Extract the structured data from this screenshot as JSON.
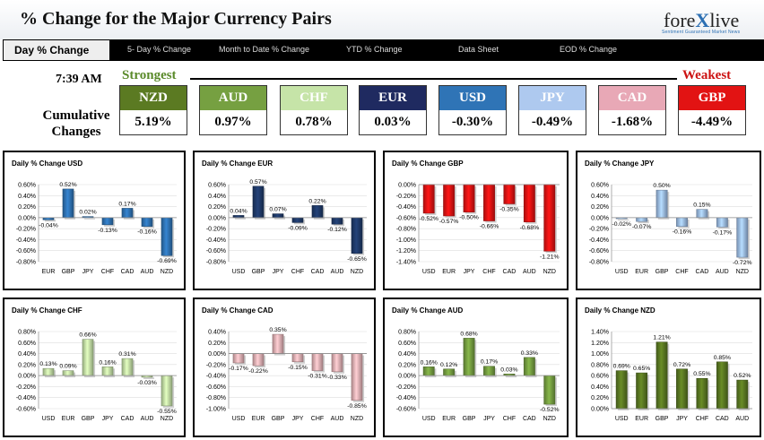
{
  "header": {
    "title": "% Change for the Major Currency Pairs",
    "logo_left": "fore",
    "logo_x": "X",
    "logo_right": "live",
    "logo_tagline": "Sentiment Guaranteed Market News"
  },
  "tabs": [
    {
      "label": "Day % Change",
      "active": true
    },
    {
      "label": "5- Day % Change"
    },
    {
      "label": "Month to Date % Change"
    },
    {
      "label": "YTD % Change"
    },
    {
      "label": "Data Sheet"
    },
    {
      "label": "EOD % Change"
    }
  ],
  "summary": {
    "time": "7:39 AM",
    "strongest_label": "Strongest",
    "weakest_label": "Weakest",
    "cumulative_label": "Cumulative Changes",
    "currencies": [
      {
        "code": "NZD",
        "value": "5.19%",
        "color": "#5b7a22"
      },
      {
        "code": "AUD",
        "value": "0.97%",
        "color": "#76a041"
      },
      {
        "code": "CHF",
        "value": "0.78%",
        "color": "#c6e4a8"
      },
      {
        "code": "EUR",
        "value": "0.03%",
        "color": "#1f2a60"
      },
      {
        "code": "USD",
        "value": "-0.30%",
        "color": "#2f74b6"
      },
      {
        "code": "JPY",
        "value": "-0.49%",
        "color": "#aec9ef"
      },
      {
        "code": "CAD",
        "value": "-1.68%",
        "color": "#e8a8b6"
      },
      {
        "code": "GBP",
        "value": "-4.49%",
        "color": "#e21313"
      }
    ]
  },
  "chart_data": [
    {
      "type": "bar",
      "title": "Daily % Change USD",
      "categories": [
        "EUR",
        "GBP",
        "JPY",
        "CHF",
        "CAD",
        "AUD",
        "NZD"
      ],
      "values": [
        -0.04,
        0.52,
        0.02,
        -0.13,
        0.17,
        -0.16,
        -0.69
      ],
      "labels": [
        "-0.04%",
        "0.52%",
        "0.02%",
        "-0.13%",
        "0.17%",
        "-0.16%",
        "-0.69%"
      ],
      "ylim": [
        -0.8,
        0.6
      ],
      "yticks": [
        "0.60%",
        "0.40%",
        "0.20%",
        "0.00%",
        "-0.20%",
        "-0.40%",
        "-0.60%",
        "-0.80%"
      ],
      "color": "#2f74b6"
    },
    {
      "type": "bar",
      "title": "Daily % Change EUR",
      "categories": [
        "USD",
        "GBP",
        "JPY",
        "CHF",
        "CAD",
        "AUD",
        "NZD"
      ],
      "values": [
        0.04,
        0.57,
        0.07,
        -0.09,
        0.22,
        -0.12,
        -0.65
      ],
      "labels": [
        "0.04%",
        "0.57%",
        "0.07%",
        "-0.09%",
        "0.22%",
        "-0.12%",
        "-0.65%"
      ],
      "ylim": [
        -0.8,
        0.6
      ],
      "yticks": [
        "0.60%",
        "0.40%",
        "0.20%",
        "0.00%",
        "-0.20%",
        "-0.40%",
        "-0.60%",
        "-0.80%"
      ],
      "color": "#1f3a6a"
    },
    {
      "type": "bar",
      "title": "Daily % Change GBP",
      "categories": [
        "USD",
        "EUR",
        "JPY",
        "CHF",
        "CAD",
        "AUD",
        "NZD"
      ],
      "values": [
        -0.52,
        -0.57,
        -0.5,
        -0.66,
        -0.35,
        -0.68,
        -1.21
      ],
      "labels": [
        "-0.52%",
        "-0.57%",
        "-0.50%",
        "-0.66%",
        "-0.35%",
        "-0.68%",
        "-1.21%"
      ],
      "ylim": [
        -1.4,
        0.0
      ],
      "yticks": [
        "0.00%",
        "-0.20%",
        "-0.40%",
        "-0.60%",
        "-0.80%",
        "-1.00%",
        "-1.20%",
        "-1.40%"
      ],
      "color": "#e21313"
    },
    {
      "type": "bar",
      "title": "Daily % Change JPY",
      "categories": [
        "USD",
        "EUR",
        "GBP",
        "CHF",
        "CAD",
        "AUD",
        "NZD"
      ],
      "values": [
        -0.02,
        -0.07,
        0.5,
        -0.16,
        0.15,
        -0.17,
        -0.72
      ],
      "labels": [
        "-0.02%",
        "-0.07%",
        "0.50%",
        "-0.16%",
        "0.15%",
        "-0.17%",
        "-0.72%"
      ],
      "ylim": [
        -0.8,
        0.6
      ],
      "yticks": [
        "0.60%",
        "0.40%",
        "0.20%",
        "0.00%",
        "-0.20%",
        "-0.40%",
        "-0.60%",
        "-0.80%"
      ],
      "color": "#9fc0ec"
    },
    {
      "type": "bar",
      "title": "Daily % Change CHF",
      "categories": [
        "USD",
        "EUR",
        "GBP",
        "JPY",
        "CAD",
        "AUD",
        "NZD"
      ],
      "values": [
        0.13,
        0.09,
        0.66,
        0.16,
        0.31,
        -0.03,
        -0.55
      ],
      "labels": [
        "0.13%",
        "0.09%",
        "0.66%",
        "0.16%",
        "0.31%",
        "-0.03%",
        "-0.55%"
      ],
      "ylim": [
        -0.6,
        0.8
      ],
      "yticks": [
        "0.80%",
        "0.60%",
        "0.40%",
        "0.20%",
        "0.00%",
        "-0.20%",
        "-0.40%",
        "-0.60%"
      ],
      "color": "#c6e4a8"
    },
    {
      "type": "bar",
      "title": "Daily % Change CAD",
      "categories": [
        "USD",
        "EUR",
        "GBP",
        "JPY",
        "CHF",
        "AUD",
        "NZD"
      ],
      "values": [
        -0.17,
        -0.22,
        0.35,
        -0.15,
        -0.31,
        -0.33,
        -0.85
      ],
      "labels": [
        "-0.17%",
        "-0.22%",
        "0.35%",
        "-0.15%",
        "-0.31%",
        "-0.33%",
        "-0.85%"
      ],
      "ylim": [
        -1.0,
        0.4
      ],
      "yticks": [
        "0.40%",
        "0.20%",
        "0.00%",
        "-0.20%",
        "-0.40%",
        "-0.60%",
        "-0.80%",
        "-1.00%"
      ],
      "color": "#e8b4b8"
    },
    {
      "type": "bar",
      "title": "Daily % Change AUD",
      "categories": [
        "USD",
        "EUR",
        "GBP",
        "JPY",
        "CHF",
        "CAD",
        "NZD"
      ],
      "values": [
        0.16,
        0.12,
        0.68,
        0.17,
        0.03,
        0.33,
        -0.52
      ],
      "labels": [
        "0.16%",
        "0.12%",
        "0.68%",
        "0.17%",
        "0.03%",
        "0.33%",
        "-0.52%"
      ],
      "ylim": [
        -0.6,
        0.8
      ],
      "yticks": [
        "0.80%",
        "0.60%",
        "0.40%",
        "0.20%",
        "0.00%",
        "-0.20%",
        "-0.40%",
        "-0.60%"
      ],
      "color": "#76a041"
    },
    {
      "type": "bar",
      "title": "Daily % Change NZD",
      "categories": [
        "USD",
        "EUR",
        "GBP",
        "JPY",
        "CHF",
        "CAD",
        "AUD"
      ],
      "values": [
        0.69,
        0.65,
        1.21,
        0.72,
        0.55,
        0.85,
        0.52
      ],
      "labels": [
        "0.69%",
        "0.65%",
        "1.21%",
        "0.72%",
        "0.55%",
        "0.85%",
        "0.52%"
      ],
      "ylim": [
        0.0,
        1.4
      ],
      "yticks": [
        "1.40%",
        "1.20%",
        "1.00%",
        "0.80%",
        "0.60%",
        "0.40%",
        "0.20%",
        "0.00%"
      ],
      "color": "#5b7a22"
    }
  ]
}
